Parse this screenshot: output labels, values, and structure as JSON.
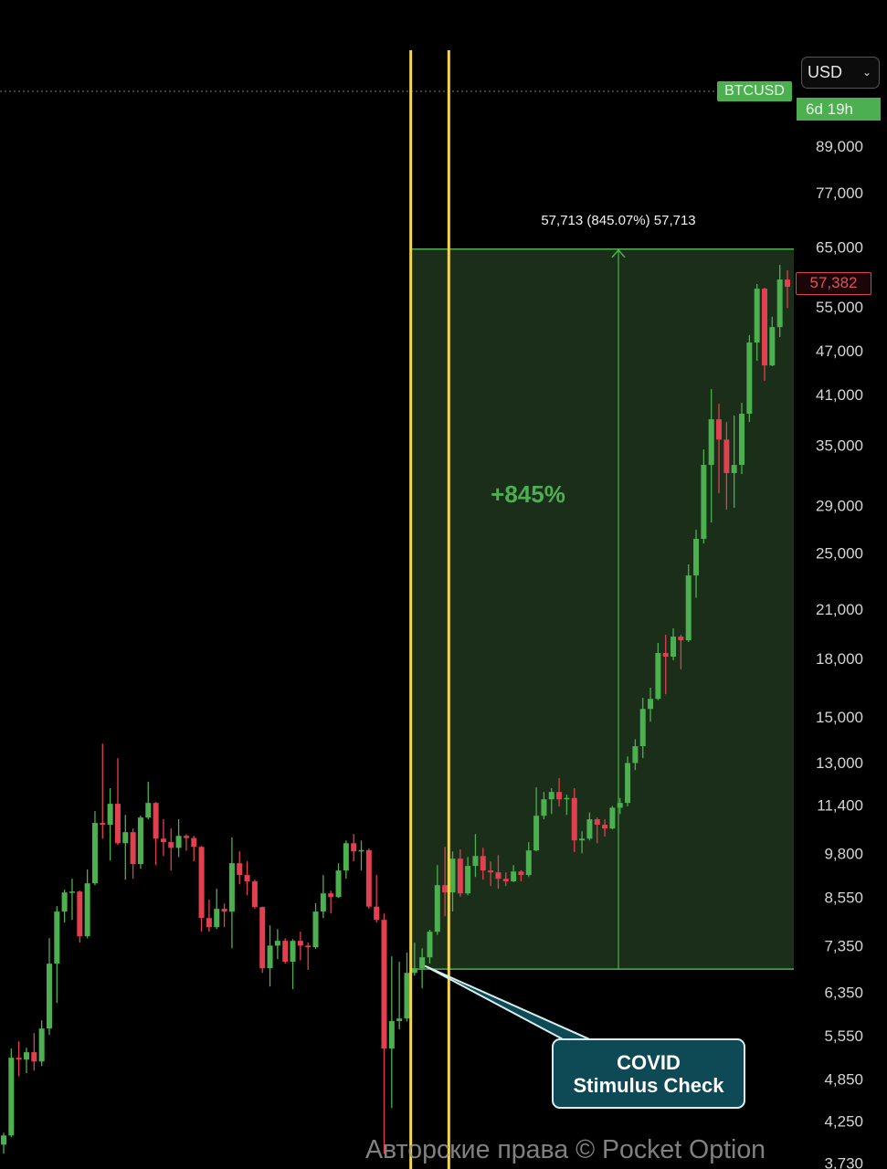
{
  "header": {
    "symbol": "BTCUSD",
    "currency": "USD",
    "countdown": "6d 19h",
    "last_price_label": "57,382"
  },
  "colors": {
    "up": "#4caf50",
    "down": "#e0404f",
    "range_fill": "#1a2e1a",
    "range_line": "#4caf50",
    "marker_line": "#f2d54e",
    "callout_fill": "#0d4a55",
    "background": "#000000"
  },
  "measurement": {
    "label": "57,713 (845.07%) 57,713",
    "percent_label": "+845%"
  },
  "callout": {
    "line1": "COVID",
    "line2": "Stimulus Check"
  },
  "watermark": "Авторские права © Pocket Option",
  "chart_data": {
    "type": "candlestick",
    "title": "",
    "scale": "log",
    "grid": false,
    "y_ticks": [
      "89,000",
      "77,000",
      "65,000",
      "55,000",
      "47,000",
      "41,000",
      "35,000",
      "29,000",
      "25,000",
      "21,000",
      "18,000",
      "15,000",
      "13,000",
      "11,400",
      "9,800",
      "8,550",
      "7,350",
      "6,350",
      "5,550",
      "4,850",
      "4,250",
      "3,730"
    ],
    "y_tick_values": [
      89000,
      77000,
      65000,
      55000,
      47000,
      41000,
      35000,
      29000,
      25000,
      21000,
      18000,
      15000,
      13000,
      11400,
      9800,
      8550,
      7350,
      6350,
      5550,
      4850,
      4250,
      3730
    ],
    "last_price": 57382,
    "range_measure": {
      "from": 6829,
      "to": 64543,
      "change": 57713,
      "change_pct": 845.07
    },
    "candle_fields": [
      "open",
      "high",
      "low",
      "close"
    ],
    "candles": [
      [
        3950,
        4100,
        3840,
        4065
      ],
      [
        4065,
        5330,
        4043,
        5180
      ],
      [
        5180,
        5450,
        4890,
        5150
      ],
      [
        5150,
        5345,
        4935,
        5270
      ],
      [
        5270,
        5595,
        4975,
        5120
      ],
      [
        5120,
        5822,
        5049,
        5674
      ],
      [
        5674,
        7523,
        5562,
        6947
      ],
      [
        6947,
        8312,
        6146,
        8173
      ],
      [
        8173,
        8750,
        7897,
        8675
      ],
      [
        8675,
        9054,
        7965,
        8700
      ],
      [
        8700,
        8725,
        7417,
        7567
      ],
      [
        7567,
        9317,
        7520,
        8926
      ],
      [
        8926,
        11180,
        8875,
        10775
      ],
      [
        10775,
        13800,
        10260,
        10715
      ],
      [
        10715,
        12010,
        9584,
        11440
      ],
      [
        11440,
        13190,
        10060,
        10115
      ],
      [
        10115,
        11050,
        9030,
        10470
      ],
      [
        10470,
        10590,
        9054,
        9480
      ],
      [
        9480,
        11020,
        9340,
        10960
      ],
      [
        10960,
        12250,
        10900,
        11470
      ],
      [
        11470,
        11500,
        9450,
        10260
      ],
      [
        10260,
        10900,
        9720,
        10150
      ],
      [
        10150,
        10590,
        9290,
        9970
      ],
      [
        9970,
        10900,
        9690,
        10350
      ],
      [
        10350,
        10400,
        9880,
        10280
      ],
      [
        10280,
        10350,
        9560,
        10000
      ],
      [
        10000,
        10030,
        7675,
        8010
      ],
      [
        8010,
        8480,
        7675,
        7785
      ],
      [
        7785,
        8775,
        7740,
        8243
      ],
      [
        8243,
        8380,
        7785,
        8170
      ],
      [
        8170,
        10300,
        7290,
        9504
      ],
      [
        9504,
        9860,
        8900,
        9160
      ],
      [
        9160,
        9560,
        8600,
        8980
      ],
      [
        8980,
        9030,
        8250,
        8290
      ],
      [
        8290,
        8300,
        6750,
        6848
      ],
      [
        6848,
        7830,
        6470,
        7350
      ],
      [
        7350,
        7740,
        7045,
        7460
      ],
      [
        7460,
        7520,
        6950,
        6990
      ],
      [
        6990,
        7500,
        6417,
        7460
      ],
      [
        7460,
        7675,
        7020,
        7350
      ],
      [
        7350,
        7420,
        6810,
        7312
      ],
      [
        7312,
        8390,
        7280,
        8173
      ],
      [
        8173,
        9160,
        8010,
        8650
      ],
      [
        8650,
        8725,
        8124,
        8550
      ],
      [
        8550,
        9504,
        8530,
        9290
      ],
      [
        9290,
        10200,
        9054,
        10115
      ],
      [
        10115,
        10410,
        9560,
        9860
      ],
      [
        9860,
        10200,
        9290,
        9900
      ],
      [
        9900,
        9950,
        8250,
        8300
      ],
      [
        8300,
        9160,
        7900,
        7965
      ],
      [
        7965,
        8124,
        3840,
        5330
      ],
      [
        5330,
        7107,
        4428,
        5807
      ],
      [
        5807,
        6990,
        5658,
        5855
      ],
      [
        5855,
        7190,
        5800,
        6750
      ],
      [
        6750,
        7417,
        6690,
        6848
      ],
      [
        6848,
        7290,
        6432,
        7087
      ],
      [
        7087,
        7720,
        6950,
        7675
      ],
      [
        7675,
        9450,
        7600,
        8875
      ],
      [
        8875,
        10000,
        8055,
        8675
      ],
      [
        8675,
        9860,
        8173,
        9640
      ],
      [
        9640,
        9920,
        8560,
        8650
      ],
      [
        8650,
        9690,
        8600,
        9424
      ],
      [
        9424,
        10410,
        9106,
        9720
      ],
      [
        9720,
        9975,
        9030,
        9290
      ],
      [
        9290,
        9560,
        8850,
        9237
      ],
      [
        9237,
        9745,
        8775,
        9054
      ],
      [
        9054,
        9237,
        8850,
        8980
      ],
      [
        8980,
        9450,
        8960,
        9260
      ],
      [
        9260,
        9300,
        8980,
        9160
      ],
      [
        9160,
        10150,
        9106,
        9890
      ],
      [
        9890,
        12040,
        9860,
        11020
      ],
      [
        11020,
        11870,
        10900,
        11600
      ],
      [
        11600,
        12010,
        11080,
        11870
      ],
      [
        11870,
        12390,
        11350,
        11600
      ],
      [
        11600,
        11770,
        11050,
        11650
      ],
      [
        11650,
        12010,
        9840,
        10205
      ],
      [
        10205,
        10500,
        9800,
        10260
      ],
      [
        10260,
        11130,
        10205,
        10900
      ],
      [
        10900,
        10960,
        10115,
        10715
      ],
      [
        10715,
        10900,
        10330,
        10590
      ],
      [
        10590,
        11360,
        10560,
        11300
      ],
      [
        11300,
        11650,
        11080,
        11470
      ],
      [
        11470,
        13260,
        11350,
        12990
      ],
      [
        12990,
        13990,
        12710,
        13690
      ],
      [
        13690,
        15920,
        13190,
        15380
      ],
      [
        15380,
        16430,
        14780,
        15870
      ],
      [
        15870,
        18890,
        15800,
        18310
      ],
      [
        18310,
        19380,
        16100,
        18100
      ],
      [
        18100,
        19770,
        17900,
        19270
      ],
      [
        19270,
        19380,
        17400,
        19050
      ],
      [
        19050,
        24140,
        18950,
        23320
      ],
      [
        23320,
        26890,
        21760,
        26140
      ],
      [
        26140,
        34550,
        25770,
        32920
      ],
      [
        32920,
        41700,
        27510,
        37960
      ],
      [
        37960,
        39840,
        30140,
        35630
      ],
      [
        35630,
        37630,
        28640,
        32090
      ],
      [
        32090,
        38400,
        28800,
        32920
      ],
      [
        32920,
        39950,
        32000,
        38620
      ],
      [
        38620,
        49340,
        37630,
        48230
      ],
      [
        48230,
        57880,
        45560,
        57050
      ],
      [
        57050,
        57210,
        42790,
        44900
      ],
      [
        44900,
        52270,
        44800,
        50610
      ],
      [
        50610,
        61440,
        49050,
        58700
      ],
      [
        58700,
        60400,
        53700,
        57382
      ]
    ]
  }
}
